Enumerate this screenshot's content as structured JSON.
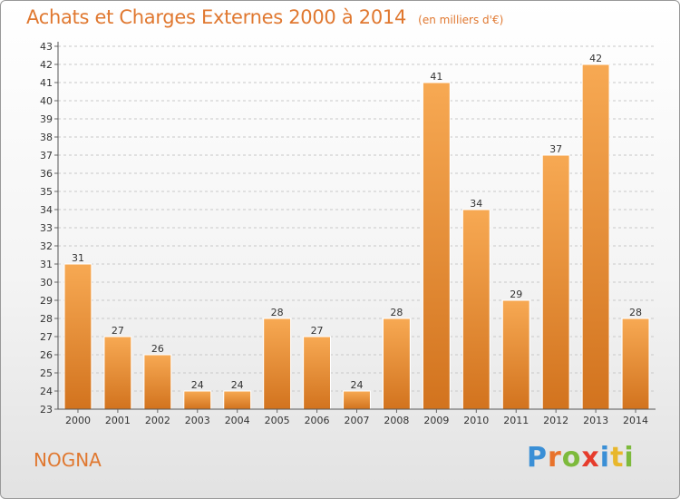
{
  "title": "Achats et Charges Externes 2000 à 2014",
  "unit": "(en milliers d'€)",
  "town": "NOGNA",
  "logo": {
    "text": "Proxiti",
    "letters": [
      {
        "ch": "P",
        "color": "#3a8fd6"
      },
      {
        "ch": "r",
        "color": "#e8732c"
      },
      {
        "ch": "o",
        "color": "#7dba3c"
      },
      {
        "ch": "x",
        "color": "#e63c2c"
      },
      {
        "ch": "i",
        "color": "#3a8fd6"
      },
      {
        "ch": "t",
        "color": "#e8b72c"
      },
      {
        "ch": "i",
        "color": "#7dba3c"
      }
    ]
  },
  "colors": {
    "bar_light": "#f7a953",
    "bar_dark": "#d2731e",
    "title": "#e07830"
  },
  "chart_data": {
    "type": "bar",
    "categories": [
      "2000",
      "2001",
      "2002",
      "2003",
      "2004",
      "2005",
      "2006",
      "2007",
      "2008",
      "2009",
      "2010",
      "2011",
      "2012",
      "2013",
      "2014"
    ],
    "values": [
      31,
      27,
      26,
      24,
      24,
      28,
      27,
      24,
      28,
      41,
      34,
      29,
      37,
      42,
      28
    ],
    "title": "Achats et Charges Externes 2000 à 2014",
    "subtitle": "(en milliers d'€)",
    "xlabel": "",
    "ylabel": "",
    "ylim": [
      23,
      43
    ],
    "yticks": [
      23,
      24,
      25,
      26,
      27,
      28,
      29,
      30,
      31,
      32,
      33,
      34,
      35,
      36,
      37,
      38,
      39,
      40,
      41,
      42,
      43
    ],
    "grid": true,
    "legend": "none"
  }
}
